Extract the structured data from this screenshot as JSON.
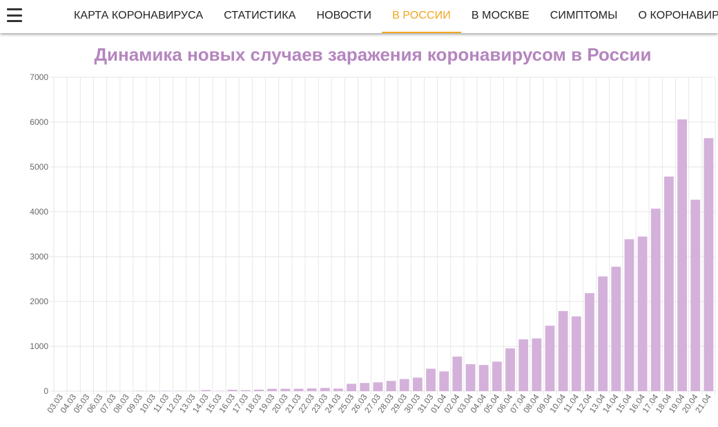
{
  "header": {
    "menu_icon": "hamburger-menu-icon",
    "nav": [
      {
        "label": "КАРТА КОРОНАВИРУСА",
        "active": false
      },
      {
        "label": "СТАТИСТИКА",
        "active": false
      },
      {
        "label": "НОВОСТИ",
        "active": false
      },
      {
        "label": "В РОССИИ",
        "active": true
      },
      {
        "label": "В МОСКВЕ",
        "active": false
      },
      {
        "label": "СИМПТОМЫ",
        "active": false
      },
      {
        "label": "О КОРОНАВИРУСЕ",
        "active": false
      }
    ],
    "accent_color": "#f2a51f"
  },
  "chart_data": {
    "type": "bar",
    "title": "Динамика новых случаев заражения коронавирусом в России",
    "xlabel": "",
    "ylabel": "",
    "ylim": [
      0,
      7000
    ],
    "yticks": [
      0,
      1000,
      2000,
      3000,
      4000,
      5000,
      6000,
      7000
    ],
    "grid": true,
    "bar_color": "#d4b1da",
    "title_color": "#b585bf",
    "categories": [
      "03.03",
      "04.03",
      "05.03",
      "06.03",
      "07.03",
      "08.03",
      "09.03",
      "10.03",
      "11.03",
      "12.03",
      "13.03",
      "14.03",
      "15.03",
      "16.03",
      "17.03",
      "18.03",
      "19.03",
      "20.03",
      "21.03",
      "22.03",
      "23.03",
      "24.03",
      "25.03",
      "26.03",
      "27.03",
      "28.03",
      "29.03",
      "30.03",
      "31.03",
      "01.04",
      "02.04",
      "03.04",
      "04.04",
      "05.04",
      "06.04",
      "07.04",
      "08.04",
      "09.04",
      "10.04",
      "11.04",
      "12.04",
      "13.04",
      "14.04",
      "15.04",
      "16.04",
      "17.04",
      "18.04",
      "19.04",
      "20.04",
      "21.04"
    ],
    "values": [
      0,
      1,
      0,
      0,
      3,
      0,
      7,
      3,
      8,
      6,
      6,
      25,
      6,
      30,
      22,
      33,
      52,
      53,
      54,
      61,
      71,
      57,
      163,
      182,
      196,
      228,
      270,
      302,
      500,
      440,
      771,
      601,
      582,
      658,
      954,
      1154,
      1175,
      1459,
      1786,
      1667,
      2186,
      2558,
      2774,
      3388,
      3448,
      4070,
      4785,
      6060,
      4268,
      5642
    ]
  }
}
